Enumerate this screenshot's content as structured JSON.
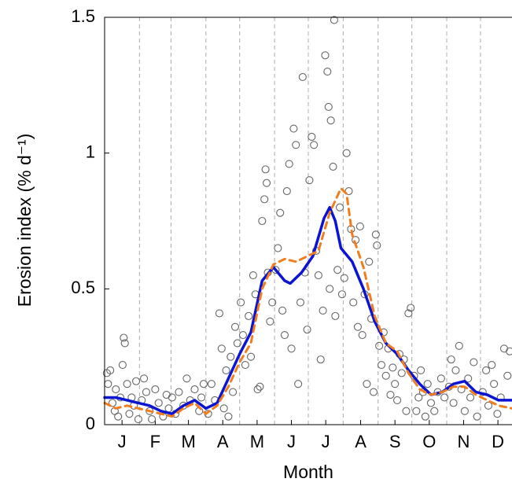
{
  "chart_data": {
    "type": "scatter",
    "xlabel": "Month",
    "ylabel": "Erosion index (% d⁻¹)",
    "xlim": [
      0,
      362
    ],
    "ylim": [
      0,
      1.5
    ],
    "yticks": [
      0,
      0.5,
      1,
      1.5
    ],
    "xticks": [
      {
        "value": 15.5,
        "label": "J"
      },
      {
        "value": 45,
        "label": "F"
      },
      {
        "value": 74.5,
        "label": "M"
      },
      {
        "value": 105,
        "label": "A"
      },
      {
        "value": 135.5,
        "label": "M"
      },
      {
        "value": 166,
        "label": "J"
      },
      {
        "value": 196.5,
        "label": "J"
      },
      {
        "value": 227.5,
        "label": "A"
      },
      {
        "value": 258,
        "label": "S"
      },
      {
        "value": 288.5,
        "label": "O"
      },
      {
        "value": 319,
        "label": "N"
      },
      {
        "value": 349.5,
        "label": "D"
      }
    ],
    "xgrid": [
      31,
      59,
      90,
      120,
      151,
      181,
      212,
      243,
      273,
      304,
      334
    ],
    "points": {
      "color": "#666666",
      "x": [
        2,
        3,
        5,
        7,
        9,
        10,
        12,
        14,
        16,
        17,
        18,
        20,
        22,
        24,
        26,
        28,
        30,
        33,
        35,
        37,
        40,
        42,
        45,
        48,
        52,
        55,
        57,
        60,
        63,
        66,
        70,
        73,
        76,
        80,
        84,
        86,
        88,
        92,
        95,
        98,
        102,
        104,
        106,
        108,
        110,
        112,
        114,
        116,
        118,
        121,
        123,
        125,
        128,
        130,
        132,
        134,
        136,
        138,
        140,
        142,
        143,
        144,
        145,
        147,
        149,
        152,
        154,
        156,
        158,
        160,
        162,
        164,
        166,
        168,
        170,
        172,
        174,
        176,
        178,
        180,
        182,
        184,
        186,
        188,
        190,
        192,
        194,
        196,
        198,
        199,
        200,
        201,
        203,
        204,
        205,
        207,
        209,
        211,
        213,
        215,
        217,
        219,
        221,
        223,
        225,
        227,
        229,
        231,
        233,
        235,
        237,
        239,
        241,
        242,
        244,
        246,
        248,
        250,
        252,
        254,
        256,
        258,
        260,
        262,
        264,
        266,
        268,
        270,
        272,
        275,
        277,
        279,
        281,
        283,
        285,
        287,
        290,
        293,
        296,
        299,
        302,
        306,
        308,
        310,
        312,
        315,
        317,
        320,
        323,
        325,
        328,
        331,
        336,
        339,
        341,
        344,
        346,
        349,
        352,
        355,
        358,
        360
      ],
      "y": [
        0.19,
        0.15,
        0.2,
        0.08,
        0.05,
        0.13,
        0.03,
        0.1,
        0.22,
        0.32,
        0.3,
        0.15,
        0.04,
        0.1,
        0.07,
        0.16,
        0.02,
        0.09,
        0.17,
        0.12,
        0.05,
        0.02,
        0.13,
        0.08,
        0.03,
        0.11,
        0.06,
        0.1,
        0.04,
        0.12,
        0.07,
        0.17,
        0.09,
        0.13,
        0.05,
        0.1,
        0.15,
        0.04,
        0.15,
        0.09,
        0.41,
        0.28,
        0.06,
        0.2,
        0.03,
        0.25,
        0.12,
        0.36,
        0.3,
        0.45,
        0.33,
        0.22,
        0.4,
        0.25,
        0.55,
        0.48,
        0.13,
        0.14,
        0.75,
        0.83,
        0.94,
        0.89,
        0.56,
        0.38,
        0.45,
        0.57,
        0.65,
        0.78,
        0.42,
        0.33,
        0.86,
        0.96,
        0.28,
        1.09,
        1.03,
        0.15,
        0.45,
        1.28,
        0.56,
        0.35,
        0.9,
        1.06,
        1.03,
        0.64,
        0.55,
        0.24,
        0.42,
        1.36,
        1.3,
        1.17,
        0.5,
        1.12,
        0.95,
        1.49,
        0.4,
        0.57,
        0.8,
        0.48,
        0.54,
        1.0,
        0.86,
        0.72,
        0.45,
        0.68,
        0.36,
        0.73,
        0.33,
        0.48,
        0.15,
        0.6,
        0.39,
        0.12,
        0.7,
        0.66,
        0.29,
        0.22,
        0.34,
        0.18,
        0.28,
        0.11,
        0.21,
        0.15,
        0.09,
        0.26,
        0.19,
        0.24,
        0.05,
        0.41,
        0.43,
        0.18,
        0.05,
        0.1,
        0.2,
        0.12,
        0.03,
        0.15,
        0.08,
        0.05,
        0.12,
        0.17,
        0.1,
        0.14,
        0.24,
        0.08,
        0.2,
        0.29,
        0.13,
        0.05,
        0.17,
        0.1,
        0.23,
        0.03,
        0.12,
        0.2,
        0.07,
        0.22,
        0.15,
        0.04,
        0.1,
        0.28,
        0.18,
        0.27
      ]
    },
    "series": [
      {
        "color": "#0a14d2",
        "dash": false,
        "x": [
          0,
          10,
          20,
          30,
          40,
          50,
          60,
          70,
          80,
          90,
          100,
          110,
          120,
          130,
          140,
          150,
          160,
          165,
          175,
          185,
          195,
          200,
          205,
          210,
          220,
          230,
          240,
          250,
          260,
          270,
          280,
          290,
          300,
          310,
          320,
          330,
          340,
          350,
          362
        ],
        "values": [
          0.1,
          0.1,
          0.09,
          0.08,
          0.07,
          0.05,
          0.04,
          0.07,
          0.09,
          0.06,
          0.08,
          0.17,
          0.26,
          0.34,
          0.53,
          0.58,
          0.53,
          0.52,
          0.56,
          0.62,
          0.76,
          0.8,
          0.75,
          0.65,
          0.6,
          0.5,
          0.38,
          0.3,
          0.26,
          0.2,
          0.15,
          0.11,
          0.12,
          0.15,
          0.16,
          0.12,
          0.11,
          0.09,
          0.09
        ]
      },
      {
        "color": "#f07d1e",
        "dash": true,
        "x": [
          0,
          10,
          20,
          30,
          40,
          50,
          60,
          70,
          80,
          90,
          100,
          110,
          120,
          130,
          140,
          150,
          160,
          170,
          180,
          190,
          200,
          210,
          215,
          220,
          230,
          240,
          250,
          260,
          270,
          280,
          290,
          300,
          310,
          320,
          330,
          340,
          350,
          362
        ],
        "values": [
          0.08,
          0.06,
          0.07,
          0.06,
          0.05,
          0.04,
          0.03,
          0.06,
          0.08,
          0.04,
          0.07,
          0.14,
          0.23,
          0.3,
          0.5,
          0.59,
          0.61,
          0.6,
          0.62,
          0.64,
          0.78,
          0.87,
          0.85,
          0.7,
          0.58,
          0.4,
          0.3,
          0.27,
          0.19,
          0.13,
          0.11,
          0.12,
          0.14,
          0.14,
          0.11,
          0.09,
          0.07,
          0.06
        ]
      }
    ]
  }
}
